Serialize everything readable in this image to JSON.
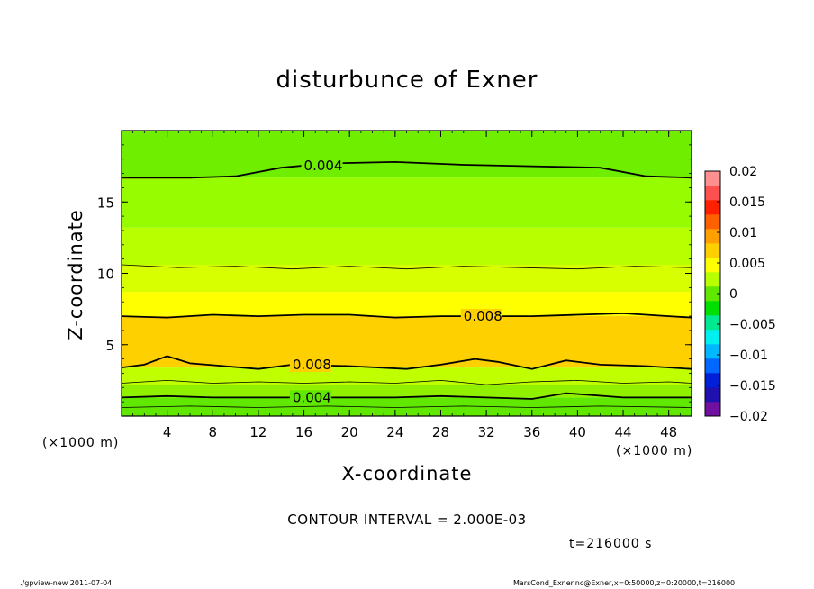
{
  "chart_data": {
    "type": "contour",
    "title": "disturbunce of Exner",
    "xlabel": "X-coordinate",
    "ylabel": "Z-coordinate",
    "x_unit_left": "(×1000 m)",
    "x_unit_right": "(×1000 m)",
    "xlim": [
      0,
      50
    ],
    "ylim": [
      0,
      20
    ],
    "xticks": [
      "4",
      "8",
      "12",
      "16",
      "20",
      "24",
      "28",
      "32",
      "36",
      "40",
      "44",
      "48"
    ],
    "yticks": [
      "5",
      "10",
      "15"
    ],
    "colorbar": {
      "levels": [
        -0.02,
        -0.015,
        -0.01,
        -0.005,
        0,
        0.005,
        0.01,
        0.015,
        0.02
      ],
      "labels": [
        "0.02",
        "0.015",
        "0.01",
        "0.005",
        "0",
        "−0.005",
        "−0.01",
        "−0.015",
        "−0.02"
      ],
      "colors": [
        "#7010a0",
        "#2010b0",
        "#0020d8",
        "#0068ff",
        "#00b8ff",
        "#00f0f0",
        "#00e890",
        "#00e000",
        "#60e800",
        "#b8ff00",
        "#ffff00",
        "#ffd000",
        "#ffa000",
        "#ff6000",
        "#ff2000",
        "#ff5050",
        "#ff9090"
      ]
    },
    "bands": [
      {
        "z_bottom": 0.0,
        "z_top": 1.3,
        "value": "0.002 to 0.004",
        "color": "#60e800"
      },
      {
        "z_bottom": 1.3,
        "z_top": 2.2,
        "value": "0.004 to 0.005",
        "color": "#90f000"
      },
      {
        "z_bottom": 2.2,
        "z_top": 3.4,
        "value": "0.005 to 0.008",
        "color": "#c0ff00"
      },
      {
        "z_bottom": 3.4,
        "z_top": 7.0,
        "value": "0.008 to 0.01",
        "color": "#ffd000"
      },
      {
        "z_bottom": 7.0,
        "z_top": 8.7,
        "value": "0.006 to 0.008",
        "color": "#ffff00"
      },
      {
        "z_bottom": 8.7,
        "z_top": 10.6,
        "value": "0.005 to 0.006",
        "color": "#d8ff00"
      },
      {
        "z_bottom": 10.6,
        "z_top": 13.2,
        "value": "0.004 to 0.005",
        "color": "#b8ff00"
      },
      {
        "z_bottom": 13.2,
        "z_top": 16.7,
        "value": "0.004",
        "color": "#98fc00"
      },
      {
        "z_bottom": 16.7,
        "z_top": 20.0,
        "value": "0.002 to 0.004",
        "color": "#70ee00"
      }
    ],
    "contours": [
      {
        "value": 0.004,
        "label": "0.004",
        "bold": true,
        "x": [
          0,
          6,
          10,
          14,
          18,
          24,
          30,
          36,
          42,
          46,
          50
        ],
        "z": [
          16.7,
          16.7,
          16.8,
          17.4,
          17.7,
          17.8,
          17.6,
          17.5,
          17.4,
          16.8,
          16.7
        ]
      },
      {
        "value": 0.006,
        "label": "",
        "bold": false,
        "x": [
          0,
          5,
          10,
          15,
          20,
          25,
          30,
          35,
          40,
          45,
          50
        ],
        "z": [
          10.6,
          10.4,
          10.5,
          10.3,
          10.5,
          10.3,
          10.5,
          10.4,
          10.3,
          10.5,
          10.4
        ]
      },
      {
        "value": 0.008,
        "label": "0.008",
        "bold": true,
        "x": [
          0,
          4,
          8,
          12,
          16,
          20,
          24,
          28,
          32,
          36,
          40,
          44,
          48,
          50
        ],
        "z": [
          7.0,
          6.9,
          7.1,
          7.0,
          7.1,
          7.1,
          6.9,
          7.0,
          7.0,
          7.0,
          7.1,
          7.2,
          7.0,
          6.9
        ]
      },
      {
        "value": 0.008,
        "label": "0.008",
        "bold": true,
        "x": [
          0,
          2,
          4,
          6,
          9,
          12,
          15,
          20,
          25,
          28,
          31,
          33,
          36,
          39,
          42,
          46,
          50
        ],
        "z": [
          3.4,
          3.6,
          4.2,
          3.7,
          3.5,
          3.3,
          3.6,
          3.5,
          3.3,
          3.6,
          4.0,
          3.8,
          3.3,
          3.9,
          3.6,
          3.5,
          3.3
        ]
      },
      {
        "value": 0.006,
        "label": "",
        "bold": false,
        "x": [
          0,
          4,
          8,
          12,
          16,
          20,
          24,
          28,
          32,
          36,
          40,
          44,
          48,
          50
        ],
        "z": [
          2.3,
          2.5,
          2.3,
          2.4,
          2.3,
          2.4,
          2.3,
          2.5,
          2.2,
          2.4,
          2.5,
          2.3,
          2.4,
          2.3
        ]
      },
      {
        "value": 0.004,
        "label": "0.004",
        "bold": true,
        "x": [
          0,
          4,
          8,
          12,
          16,
          20,
          24,
          28,
          32,
          36,
          39,
          44,
          48,
          50
        ],
        "z": [
          1.3,
          1.4,
          1.3,
          1.3,
          1.3,
          1.3,
          1.3,
          1.4,
          1.3,
          1.2,
          1.6,
          1.3,
          1.3,
          1.3
        ]
      },
      {
        "value": 0.002,
        "label": "",
        "bold": false,
        "x": [
          0,
          6,
          12,
          18,
          24,
          30,
          36,
          42,
          50
        ],
        "z": [
          0.6,
          0.7,
          0.6,
          0.7,
          0.6,
          0.7,
          0.6,
          0.7,
          0.6
        ]
      }
    ]
  },
  "contour_interval": "CONTOUR INTERVAL = 2.000E-03",
  "time_label": "t=216000 s",
  "footer_left": "./gpview-new   2011-07-04",
  "footer_right": "MarsCond_Exner.nc@Exner,x=0:50000,z=0:20000,t=216000"
}
